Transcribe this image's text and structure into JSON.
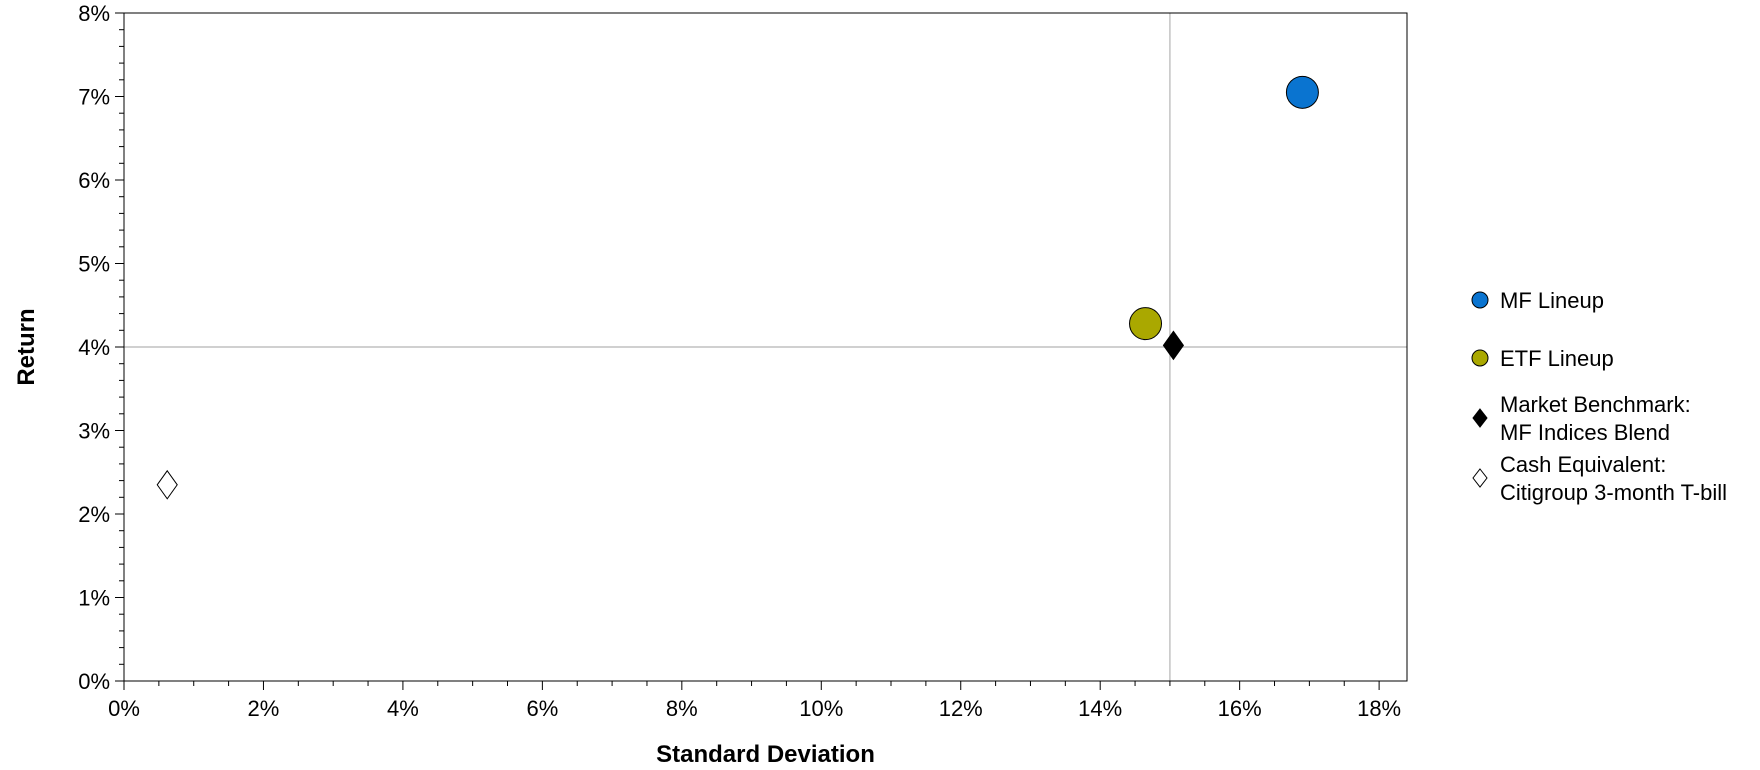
{
  "chart_data": {
    "type": "scatter",
    "title": "",
    "xlabel": "Standard Deviation",
    "ylabel": "Return",
    "xlim": [
      0,
      18.4
    ],
    "ylim": [
      0,
      8
    ],
    "x_ticks": [
      "0%",
      "2%",
      "4%",
      "6%",
      "8%",
      "10%",
      "12%",
      "14%",
      "16%",
      "18%"
    ],
    "y_ticks": [
      "0%",
      "1%",
      "2%",
      "3%",
      "4%",
      "5%",
      "6%",
      "7%",
      "8%"
    ],
    "grid": false,
    "reference_lines": {
      "x": 15.0,
      "y": 4.0
    },
    "legend_position": "right",
    "series": [
      {
        "name": "MF Lineup",
        "marker": "circle",
        "color": "#0a74d0",
        "x": 16.9,
        "y": 7.05
      },
      {
        "name": "ETF Lineup",
        "marker": "circle",
        "color": "#aaa800",
        "x": 14.65,
        "y": 4.28
      },
      {
        "name": "Market Benchmark: MF Indices Blend",
        "legend_lines": [
          "Market Benchmark:",
          "MF Indices Blend"
        ],
        "marker": "diamond",
        "color": "#000000",
        "x": 15.05,
        "y": 4.02
      },
      {
        "name": "Cash Equivalent: Citigroup 3-month T-bill",
        "legend_lines": [
          "Cash Equivalent:",
          "Citigroup 3-month T-bill"
        ],
        "marker": "diamond-open",
        "color": "#ffffff",
        "x": 0.62,
        "y": 2.35
      }
    ]
  }
}
